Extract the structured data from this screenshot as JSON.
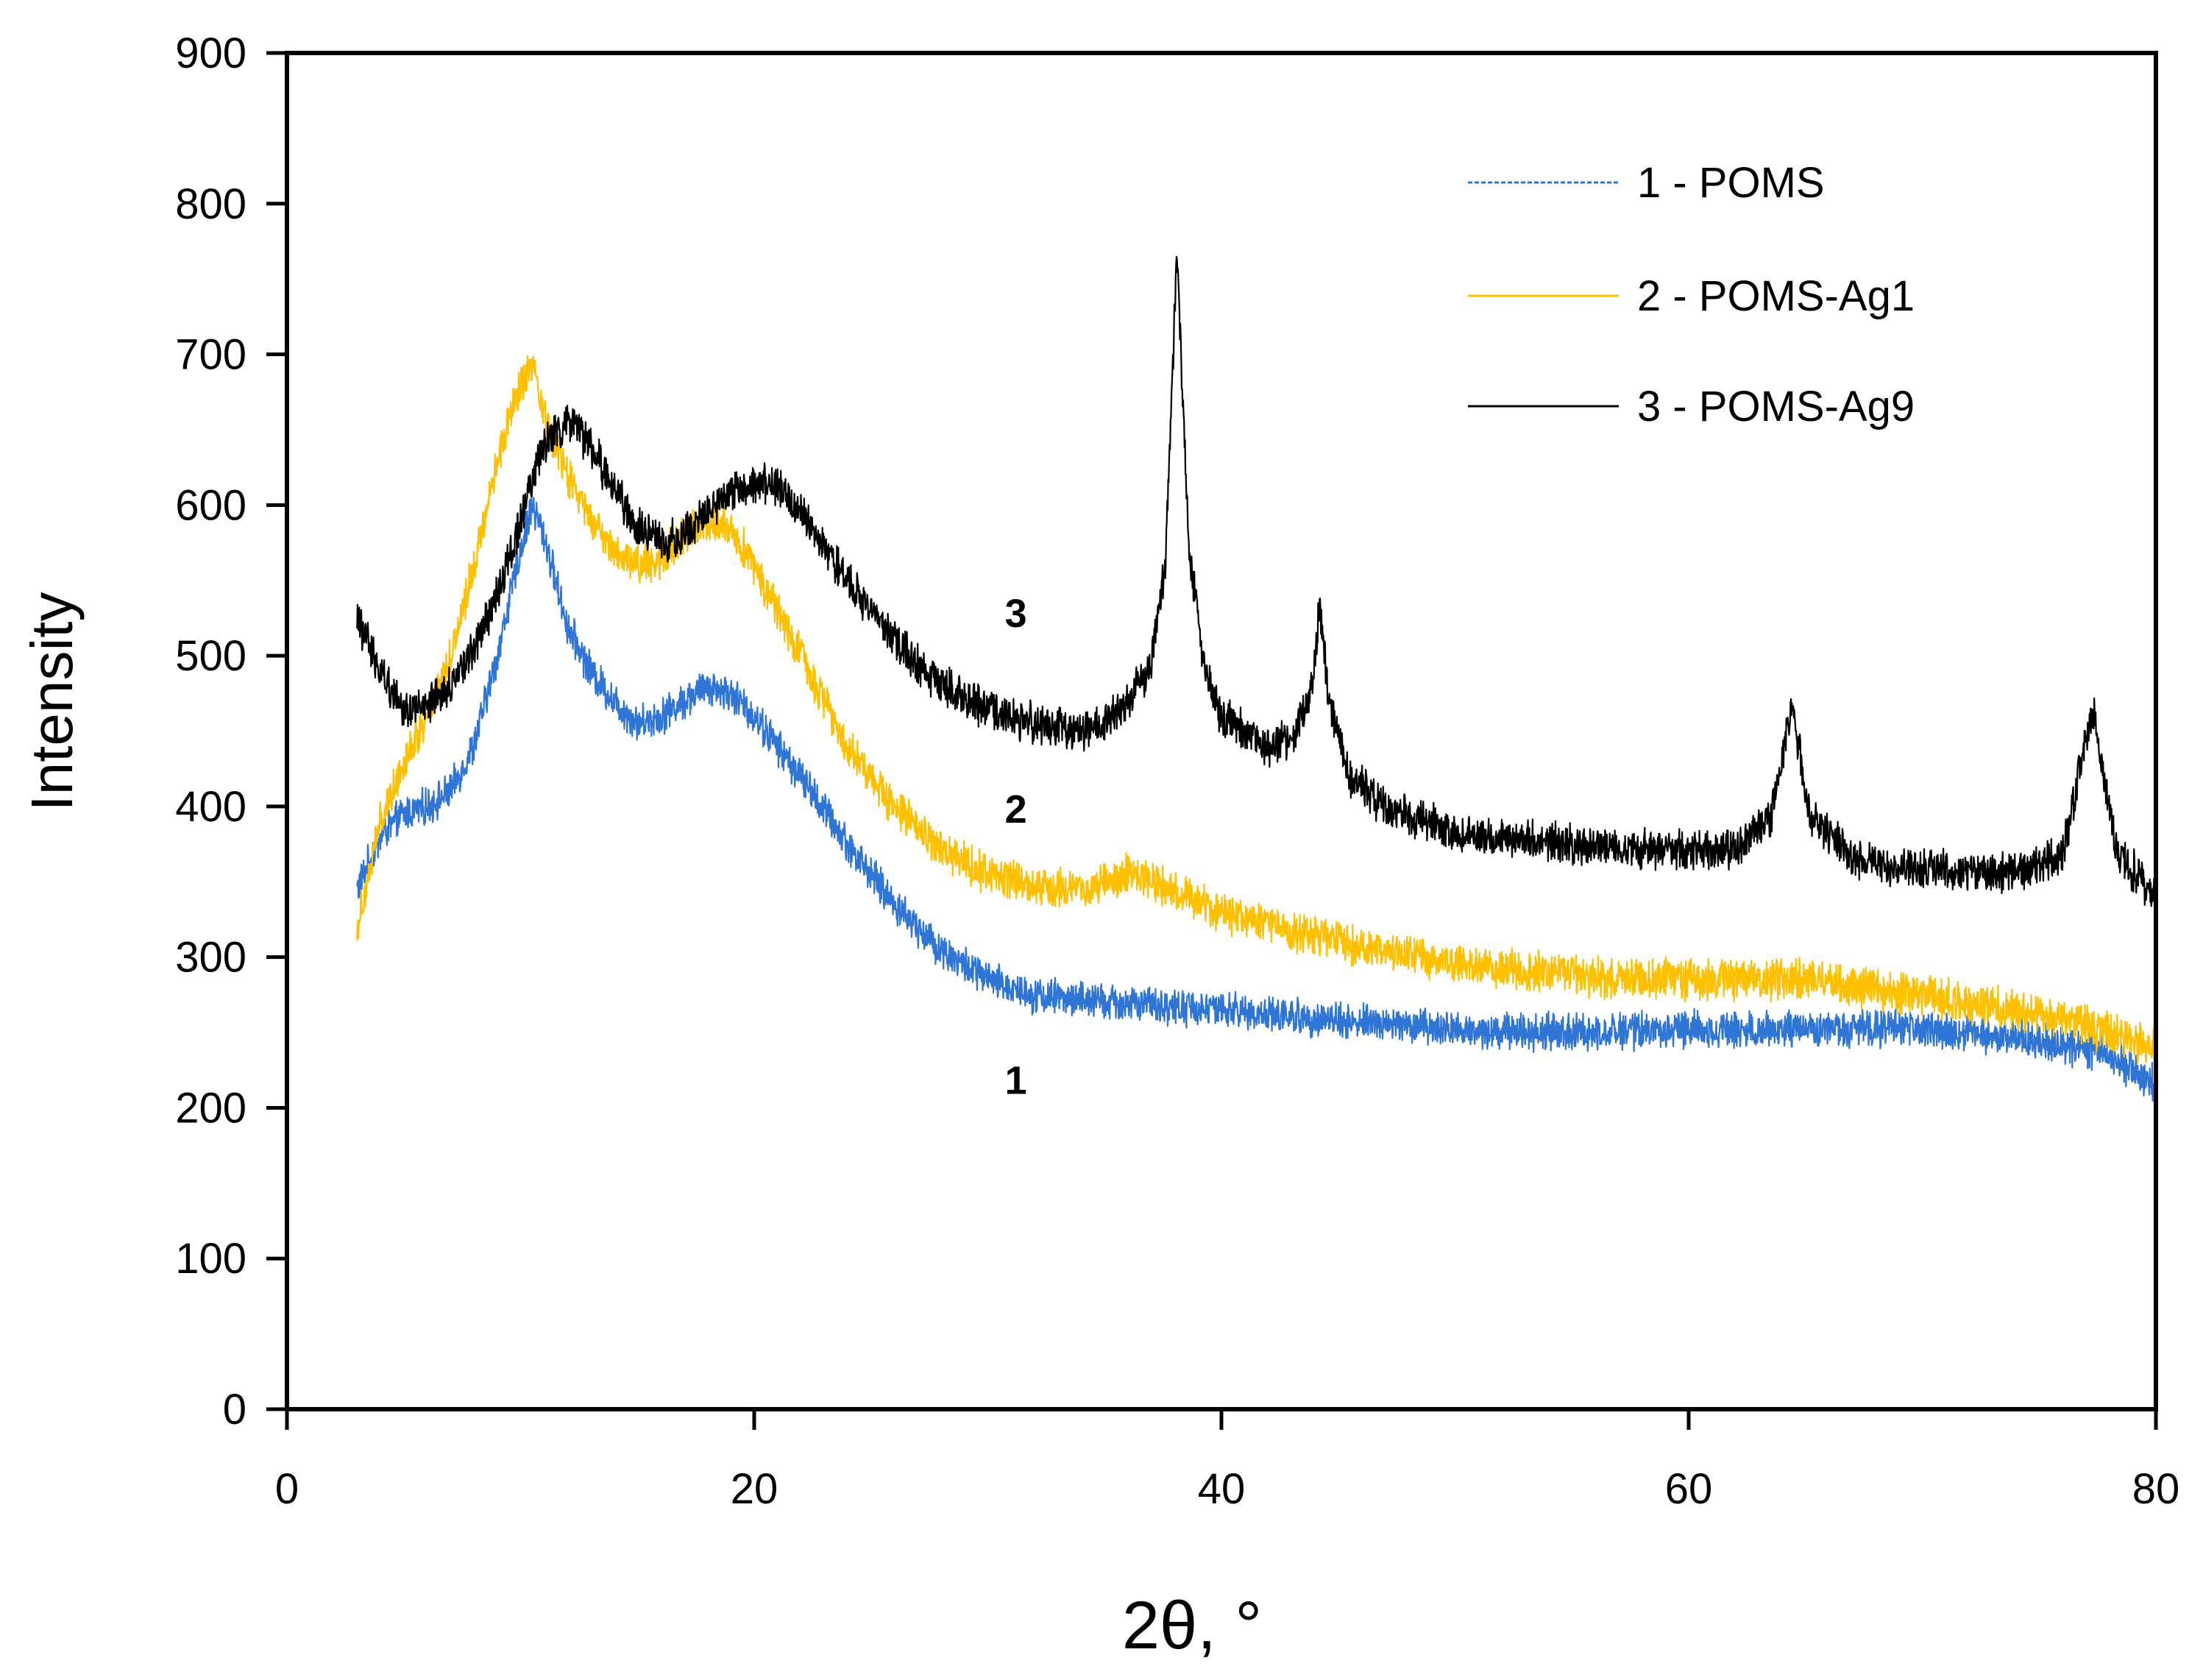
{
  "chart_data": {
    "type": "line",
    "title": "",
    "xlabel": "2θ, °",
    "ylabel": "Intensity",
    "xlim": [
      0,
      80
    ],
    "ylim": [
      0,
      900
    ],
    "xticks": [
      0,
      20,
      40,
      60,
      80
    ],
    "xtick_labels": [
      "0",
      "20",
      "40",
      "60",
      "80"
    ],
    "yticks": [
      0,
      100,
      200,
      300,
      400,
      500,
      600,
      700,
      800,
      900
    ],
    "ytick_labels": [
      "0",
      "100",
      "200",
      "300",
      "400",
      "500",
      "600",
      "700",
      "800",
      "900"
    ],
    "grid": false,
    "legend_position": "top-right",
    "series": [
      {
        "id": "s1",
        "name": "1 - POMS",
        "color": "#2e75d6",
        "dashed": true,
        "curve_label": "1",
        "noise": 10,
        "x": [
          3,
          4,
          5,
          6,
          7,
          8,
          9,
          10,
          10.5,
          11,
          12,
          13,
          14,
          15,
          16,
          17,
          18,
          19,
          20,
          22,
          24,
          26,
          28,
          30,
          32,
          35,
          40,
          45,
          50,
          55,
          60,
          65,
          70,
          75,
          78,
          80
        ],
        "y": [
          345,
          380,
          395,
          400,
          410,
          440,
          500,
          570,
          600,
          580,
          520,
          490,
          470,
          455,
          460,
          470,
          480,
          475,
          460,
          420,
          375,
          335,
          305,
          285,
          275,
          270,
          265,
          258,
          252,
          250,
          252,
          253,
          252,
          245,
          235,
          215
        ]
      },
      {
        "id": "s2",
        "name": "2 - POMS-Ag1",
        "color": "#ffc000",
        "dashed": false,
        "curve_label": "2",
        "noise": 11,
        "x": [
          3,
          4,
          5,
          6,
          7,
          8,
          9,
          10,
          10.5,
          11,
          12,
          13,
          14,
          15,
          16,
          17,
          18,
          19,
          20,
          22,
          24,
          26,
          28,
          30,
          32,
          34,
          36,
          37,
          40,
          45,
          50,
          55,
          60,
          65,
          70,
          75,
          78,
          80
        ],
        "y": [
          320,
          390,
          430,
          460,
          500,
          560,
          630,
          680,
          690,
          660,
          620,
          590,
          570,
          560,
          565,
          580,
          590,
          585,
          560,
          500,
          440,
          400,
          370,
          355,
          348,
          345,
          355,
          350,
          330,
          310,
          295,
          288,
          285,
          285,
          275,
          262,
          250,
          240
        ]
      },
      {
        "id": "s3",
        "name": "3 - POMS-Ag9",
        "color": "#000000",
        "dashed": false,
        "curve_label": "3",
        "noise": 11,
        "x": [
          3,
          4,
          5,
          6,
          7,
          8,
          9,
          10,
          11,
          12,
          13,
          14,
          15,
          16,
          17,
          18,
          19,
          20,
          21,
          22,
          24,
          26,
          28,
          30,
          32,
          34,
          35,
          36,
          37,
          37.6,
          38.1,
          38.6,
          39.3,
          40,
          41,
          42,
          43,
          43.8,
          44.2,
          44.6,
          45.5,
          47,
          50,
          55,
          60,
          62,
          63.5,
          64.4,
          65.2,
          67,
          70,
          74,
          76,
          77.3,
          78.3,
          80
        ],
        "y": [
          525,
          490,
          465,
          465,
          480,
          505,
          540,
          590,
          640,
          655,
          640,
          610,
          585,
          575,
          580,
          595,
          610,
          615,
          612,
          595,
          550,
          510,
          480,
          465,
          455,
          450,
          455,
          470,
          495,
          560,
          770,
          570,
          490,
          460,
          450,
          440,
          445,
          470,
          530,
          470,
          420,
          400,
          382,
          375,
          370,
          372,
          390,
          465,
          395,
          365,
          358,
          355,
          370,
          465,
          370,
          340
        ]
      }
    ]
  }
}
